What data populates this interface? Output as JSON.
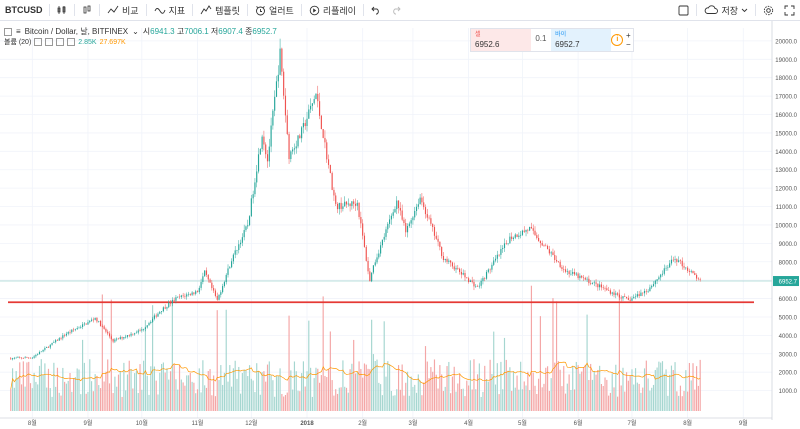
{
  "toolbar": {
    "symbol": "BTCUSD",
    "compare": "비교",
    "indicators": "지표",
    "templates": "템플릿",
    "alert": "얼러트",
    "replay": "리플레이",
    "save": "저장",
    "icons": [
      "candles-icon",
      "candlestick-icon",
      "compare-icon",
      "indicators-icon",
      "templates-icon",
      "alert-icon",
      "replay-icon",
      "undo-icon",
      "redo-icon",
      "layout-icon",
      "cloud-icon",
      "settings-icon",
      "fullscreen-icon"
    ]
  },
  "legend": {
    "title": "Bitcoin / Dollar, 날, BITFINEX",
    "open_label": "시",
    "open": "6941.3",
    "high_label": "고",
    "high": "7006.1",
    "low_label": "저",
    "low": "6907.4",
    "close_label": "종",
    "close": "6952.7"
  },
  "volume_legend": {
    "label": "볼륨 (20)",
    "value1": "2.85K",
    "value2": "27.697K"
  },
  "trade_panel": {
    "sell_label": "셀",
    "sell_price": "6952.6",
    "spread": "0.1",
    "buy_label": "바이",
    "buy_price": "6952.7",
    "plus": "+",
    "minus": "−",
    "info": "i"
  },
  "colors": {
    "up": "#26a69a",
    "down": "#ef5350",
    "support_line": "#e53935",
    "price_line": "#a5d6d0",
    "volume_ma": "#ff9800",
    "price_label_bg": "#26a69a"
  },
  "chart_data": {
    "type": "candlestick",
    "symbol": "BTCUSD",
    "interval": "1D",
    "y_axis_ticks": [
      1000,
      2000,
      3000,
      4000,
      5000,
      6000,
      7000,
      8000,
      9000,
      10000,
      11000,
      12000,
      13000,
      14000,
      15000,
      16000,
      17000,
      18000,
      19000,
      20000
    ],
    "x_axis_ticks": [
      "8월",
      "9월",
      "10월",
      "11월",
      "12월",
      "2018",
      "2월",
      "3월",
      "4월",
      "5월",
      "6월",
      "7월",
      "8월",
      "9월"
    ],
    "last_price": 6952.7,
    "last_price_label": "6952.7",
    "support_level": 5800,
    "close_path": [
      [
        "2017-07-20",
        2750
      ],
      [
        "2017-08-01",
        2800
      ],
      [
        "2017-08-10",
        3400
      ],
      [
        "2017-08-20",
        4100
      ],
      [
        "2017-09-01",
        4700
      ],
      [
        "2017-09-05",
        4950
      ],
      [
        "2017-09-15",
        3700
      ],
      [
        "2017-10-01",
        4300
      ],
      [
        "2017-10-12",
        5400
      ],
      [
        "2017-10-20",
        6000
      ],
      [
        "2017-11-01",
        6400
      ],
      [
        "2017-11-05",
        7400
      ],
      [
        "2017-11-12",
        5900
      ],
      [
        "2017-11-20",
        8100
      ],
      [
        "2017-11-29",
        10000
      ],
      [
        "2017-12-07",
        15000
      ],
      [
        "2017-12-10",
        13500
      ],
      [
        "2017-12-17",
        19300
      ],
      [
        "2017-12-22",
        13800
      ],
      [
        "2017-12-28",
        14800
      ],
      [
        "2018-01-06",
        17100
      ],
      [
        "2018-01-17",
        11000
      ],
      [
        "2018-01-29",
        11200
      ],
      [
        "2018-02-05",
        6900
      ],
      [
        "2018-02-06",
        7500
      ],
      [
        "2018-02-20",
        11300
      ],
      [
        "2018-02-25",
        9600
      ],
      [
        "2018-03-05",
        11500
      ],
      [
        "2018-03-18",
        8200
      ],
      [
        "2018-04-06",
        6600
      ],
      [
        "2018-04-24",
        9300
      ],
      [
        "2018-05-05",
        9800
      ],
      [
        "2018-05-25",
        7500
      ],
      [
        "2018-06-10",
        6800
      ],
      [
        "2018-06-29",
        5900
      ],
      [
        "2018-07-10",
        6500
      ],
      [
        "2018-07-25",
        8200
      ],
      [
        "2018-08-02",
        7500
      ],
      [
        "2018-08-08",
        6952.7
      ]
    ],
    "volume_ma_shown": true,
    "grid": true
  }
}
